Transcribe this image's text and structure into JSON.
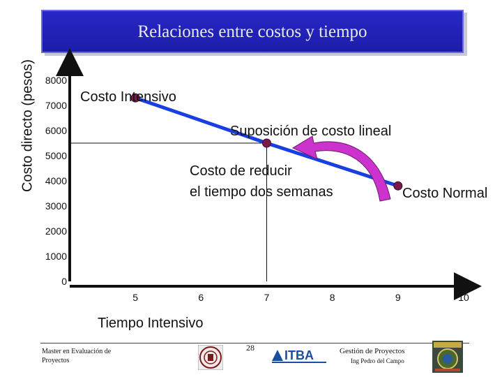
{
  "slide": {
    "title": "Relaciones entre costos y tiempo",
    "page_number": "28",
    "footer_left": "Master en Evaluación de Proyectos",
    "footer_right_1": "Gestión de Proyectos",
    "footer_right_2": "Ing Pedro del Campo",
    "logo_text": "ITBA"
  },
  "annotations": {
    "intensivo": "Costo Intensivo",
    "suposicion": "Suposición de costo lineal",
    "reducir_1": "Costo de reducir",
    "reducir_2": "el tiempo dos semanas",
    "normal": "Costo Normal",
    "tiempo_intensivo": "Tiempo Intensivo"
  },
  "colors": {
    "line": "#1a3fe0",
    "points": "#7a1a4a",
    "arrow": "#cc33cc",
    "title_bg": "#2222b8"
  },
  "chart_data": {
    "type": "line",
    "title": "Relaciones entre costos y tiempo",
    "xlabel": "",
    "ylabel": "Costo directo (pesos)",
    "x_ticks": [
      5,
      6,
      7,
      8,
      9,
      10
    ],
    "y_ticks": [
      0,
      1000,
      2000,
      3000,
      4000,
      5000,
      6000,
      7000,
      8000
    ],
    "xlim": [
      4,
      10
    ],
    "ylim": [
      0,
      8000
    ],
    "series": [
      {
        "x": [
          5,
          7,
          9
        ],
        "y": [
          7300,
          5500,
          3800
        ]
      }
    ],
    "reference_lines": {
      "x": 7,
      "y": 5500
    },
    "grid": false
  }
}
